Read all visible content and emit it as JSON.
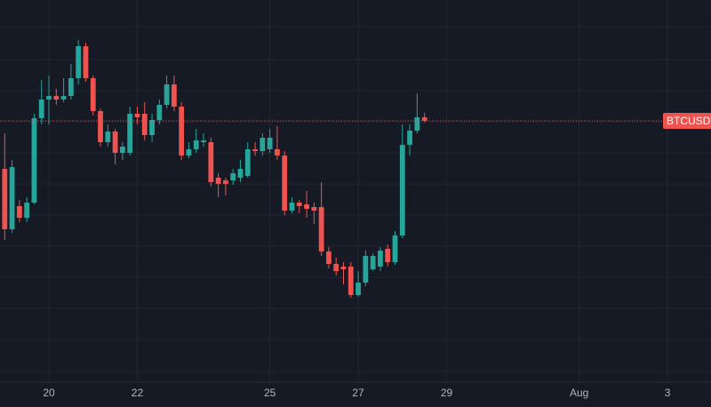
{
  "chart_data": {
    "type": "candlestick",
    "up_color": "#26a69a",
    "down_color": "#ef5350",
    "open": [
      240,
      172,
      198,
      185,
      202,
      297,
      318,
      322,
      318,
      322,
      342,
      378,
      342,
      305,
      270,
      282,
      258,
      258,
      302,
      302,
      278,
      295,
      312,
      335,
      310,
      255,
      262,
      270,
      270,
      230,
      227,
      227,
      230,
      232,
      262,
      260,
      262,
      262,
      255,
      193,
      202,
      200,
      197,
      197,
      147,
      133,
      130,
      130,
      98,
      112,
      127,
      130,
      150,
      135,
      165,
      267,
      283,
      298
    ],
    "high": [
      280,
      250,
      205,
      208,
      302,
      340,
      345,
      330,
      342,
      358,
      385,
      382,
      345,
      308,
      290,
      285,
      270,
      310,
      310,
      315,
      302,
      318,
      345,
      345,
      315,
      270,
      285,
      280,
      275,
      235,
      230,
      240,
      250,
      270,
      270,
      280,
      285,
      288,
      260,
      208,
      205,
      215,
      202,
      225,
      152,
      140,
      135,
      135,
      125,
      148,
      145,
      152,
      155,
      170,
      290,
      290,
      325,
      303
    ],
    "low": [
      160,
      168,
      180,
      180,
      200,
      290,
      290,
      312,
      315,
      318,
      335,
      338,
      300,
      265,
      265,
      245,
      250,
      255,
      290,
      272,
      270,
      290,
      308,
      305,
      250,
      252,
      258,
      265,
      220,
      208,
      210,
      222,
      225,
      230,
      255,
      255,
      258,
      250,
      188,
      190,
      190,
      185,
      178,
      142,
      128,
      120,
      110,
      95,
      96,
      108,
      125,
      125,
      130,
      132,
      162,
      255,
      280,
      292
    ],
    "close": [
      172,
      242,
      185,
      202,
      297,
      318,
      322,
      318,
      322,
      342,
      378,
      342,
      305,
      270,
      282,
      258,
      265,
      302,
      298,
      278,
      295,
      312,
      335,
      310,
      255,
      262,
      272,
      272,
      225,
      223,
      223,
      235,
      240,
      262,
      260,
      275,
      275,
      255,
      193,
      202,
      198,
      195,
      193,
      147,
      133,
      125,
      127,
      98,
      112,
      142,
      142,
      148,
      135,
      165,
      267,
      283,
      298,
      294
    ],
    "ylim": [
      0,
      430
    ],
    "yticks": [
      12,
      48,
      83,
      118,
      153,
      188,
      223,
      258,
      293,
      328,
      363,
      400
    ],
    "xlim": [
      -0.64,
      95.9
    ],
    "xticks": [
      {
        "value": 6,
        "label": "20"
      },
      {
        "value": 18,
        "label": "22"
      },
      {
        "value": 36,
        "label": "25"
      },
      {
        "value": 48,
        "label": "27"
      },
      {
        "value": 60,
        "label": "29"
      },
      {
        "value": 78,
        "label": "Aug"
      },
      {
        "value": 90,
        "label": "3"
      }
    ],
    "grid": true,
    "last_price": 294,
    "last_price_label": "BTCUSDT"
  }
}
